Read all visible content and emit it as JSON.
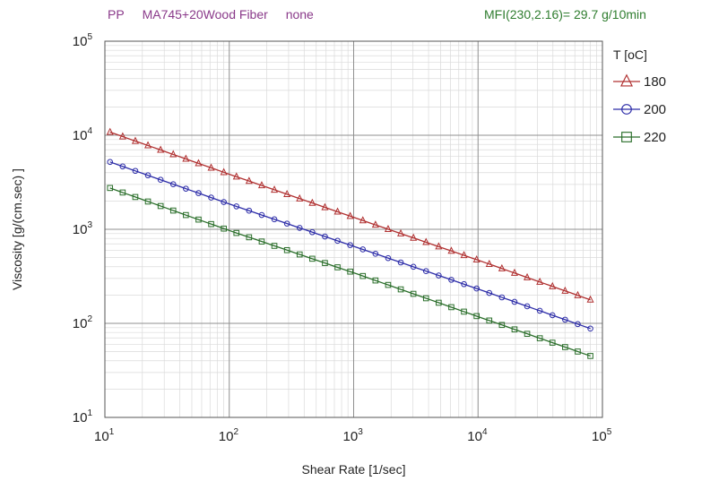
{
  "header": {
    "polymer": "PP",
    "grade": "MA745+20Wood Fiber",
    "additive": "none",
    "mfi": "MFI(230,2.16)= 29.7 g/10min"
  },
  "chart_data": {
    "type": "line",
    "xscale": "log",
    "yscale": "log",
    "xlabel": "Shear Rate [1/sec]",
    "ylabel": "Viscosity [g/(cm.sec) ]",
    "xlim": [
      10,
      100000
    ],
    "ylim": [
      10,
      100000
    ],
    "xticks": [
      {
        "base": "10",
        "exp": "1"
      },
      {
        "base": "10",
        "exp": "2"
      },
      {
        "base": "10",
        "exp": "3"
      },
      {
        "base": "10",
        "exp": "4"
      },
      {
        "base": "10",
        "exp": "5"
      }
    ],
    "yticks": [
      {
        "base": "10",
        "exp": "1"
      },
      {
        "base": "10",
        "exp": "2"
      },
      {
        "base": "10",
        "exp": "3"
      },
      {
        "base": "10",
        "exp": "4"
      },
      {
        "base": "10",
        "exp": "5"
      }
    ],
    "grid": true,
    "legend_title": "T [oC]",
    "legend_position": "right",
    "series": [
      {
        "name": "180",
        "color": "#b03030",
        "marker": "triangle",
        "points": [
          [
            11,
            10800
          ],
          [
            100,
            3850
          ],
          [
            1000,
            1340
          ],
          [
            10000,
            470
          ],
          [
            80000,
            178
          ]
        ]
      },
      {
        "name": "200",
        "color": "#2c2ca8",
        "marker": "circle",
        "points": [
          [
            11,
            5200
          ],
          [
            100,
            1860
          ],
          [
            1000,
            660
          ],
          [
            10000,
            232
          ],
          [
            80000,
            88
          ]
        ]
      },
      {
        "name": "220",
        "color": "#2a6e2a",
        "marker": "square",
        "points": [
          [
            11,
            2750
          ],
          [
            100,
            970
          ],
          [
            1000,
            345
          ],
          [
            10000,
            118
          ],
          [
            80000,
            45
          ]
        ]
      }
    ]
  }
}
